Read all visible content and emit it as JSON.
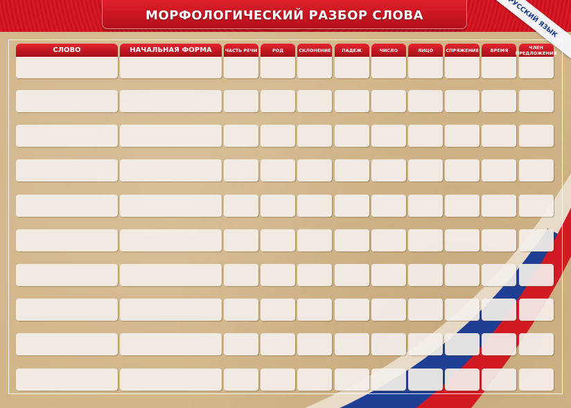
{
  "title": "МОРФОЛОГИЧЕСКИЙ РАЗБОР СЛОВА",
  "subject_ribbon": "РУССКИЙ ЯЗЫК",
  "columns": [
    {
      "label": "СЛОВО"
    },
    {
      "label": "НАЧАЛЬНАЯ ФОРМА"
    },
    {
      "label": "ЧАСТЬ РЕЧИ"
    },
    {
      "label": "РОД"
    },
    {
      "label": "СКЛОНЕНИЕ"
    },
    {
      "label": "ПАДЕЖ"
    },
    {
      "label": "ЧИСЛО"
    },
    {
      "label": "ЛИЦО"
    },
    {
      "label": "СПРЯЖЕНИЕ"
    },
    {
      "label": "ВРЕМЯ"
    },
    {
      "label": "ЧЛЕН ПРЕДЛОЖЕНИЯ"
    }
  ],
  "row_count": 10,
  "colors": {
    "header_red": "#c8121e",
    "paper": "#d2b68a",
    "ribbon_text": "#1b3a8a",
    "flag_blue": "#1f3f94",
    "flag_red": "#d21a24"
  }
}
